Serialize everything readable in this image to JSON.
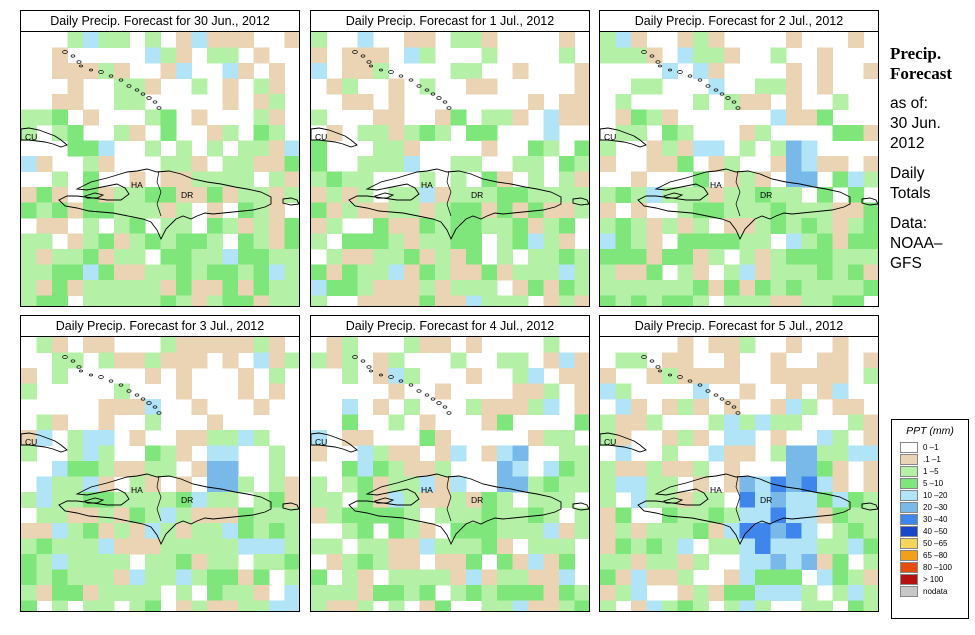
{
  "panels": [
    {
      "title": "Daily Precip. Forecast for  30 Jun., 2012",
      "seed": 11,
      "blue": 0.05,
      "heavy": 0
    },
    {
      "title": "Daily Precip. Forecast for  1 Jul., 2012",
      "seed": 23,
      "blue": 0.07,
      "heavy": 0
    },
    {
      "title": "Daily Precip. Forecast for  2 Jul., 2012",
      "seed": 37,
      "blue": 0.05,
      "heavy": 1
    },
    {
      "title": "Daily Precip. Forecast for  3 Jul., 2012",
      "seed": 41,
      "blue": 0.07,
      "heavy": 1
    },
    {
      "title": "Daily Precip. Forecast for  4 Jul., 2012",
      "seed": 53,
      "blue": 0.06,
      "heavy": 1
    },
    {
      "title": "Daily Precip. Forecast for  5 Jul., 2012",
      "seed": 67,
      "blue": 0.12,
      "heavy": 2
    }
  ],
  "map_labels": {
    "cuba": "CU",
    "haiti": "HA",
    "dominican_republic": "DR"
  },
  "sidebar": {
    "title_line1": "Precip.",
    "title_line2": "Forecast",
    "asof_label": "as of:",
    "date_line1": "30 Jun.",
    "date_line2": "2012",
    "totals_line1": "Daily",
    "totals_line2": "Totals",
    "data_line1": "Data:",
    "data_line2": "NOAA–",
    "data_line3": "GFS"
  },
  "legend": {
    "title": "PPT (mm)",
    "items": [
      {
        "label": "0 –1",
        "color": "#ffffff"
      },
      {
        "label": ".1 –1",
        "color": "#ead4b3"
      },
      {
        "label": "1 –5",
        "color": "#b4f0a6"
      },
      {
        "label": "5 –10",
        "color": "#7ee67a"
      },
      {
        "label": "10 –20",
        "color": "#b0e4f6"
      },
      {
        "label": "20 –30",
        "color": "#79b9ea"
      },
      {
        "label": "30 –40",
        "color": "#3f86ec"
      },
      {
        "label": "40 –50",
        "color": "#1a47c8"
      },
      {
        "label": "50 –65",
        "color": "#f6d65a"
      },
      {
        "label": "65 –80",
        "color": "#f29f1a"
      },
      {
        "label": "80 –100",
        "color": "#e44d0b"
      },
      {
        "label": "> 100",
        "color": "#b80f0f"
      },
      {
        "label": "nodata",
        "color": "#c8c8c8"
      }
    ]
  }
}
